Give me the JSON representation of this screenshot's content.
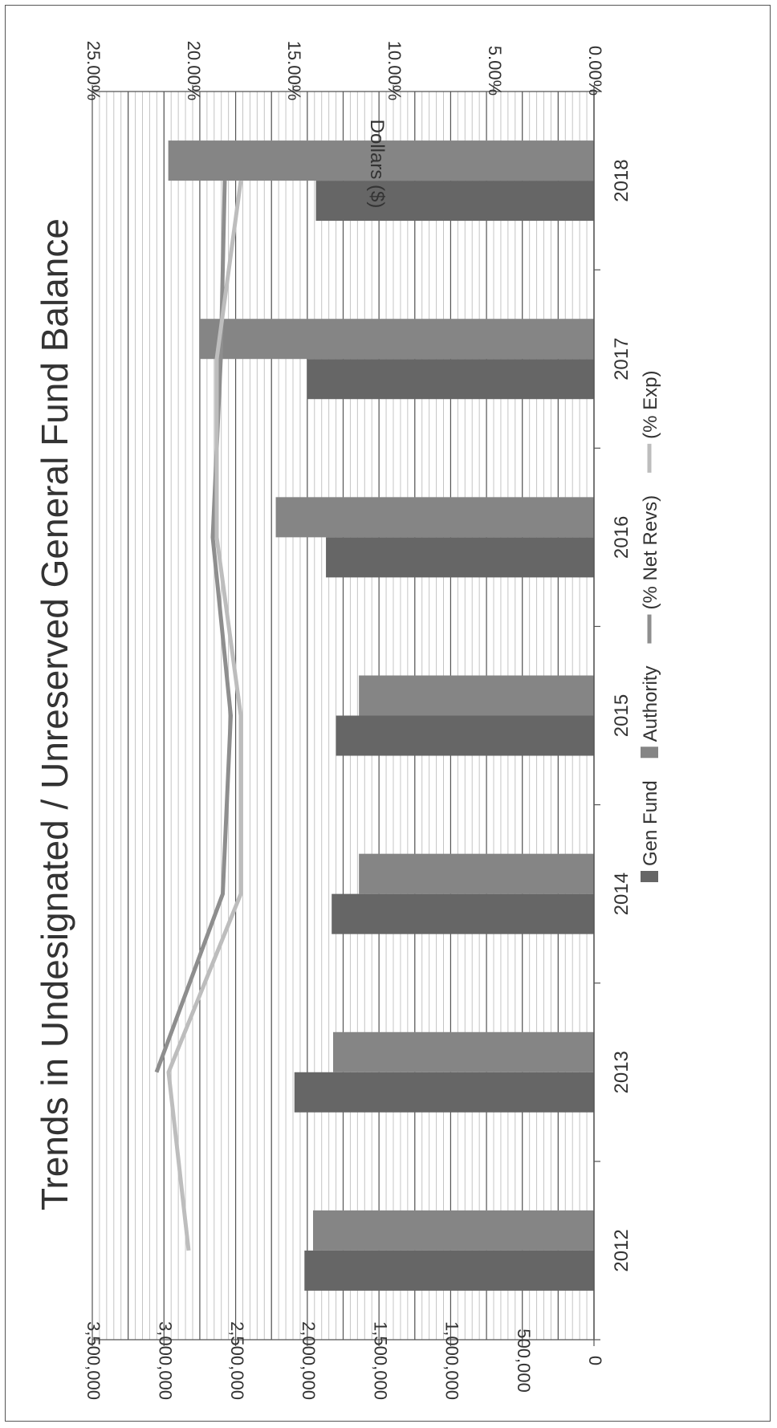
{
  "chart_data": {
    "type": "bar",
    "title": "Trends in Undesignated / Unreserved General Fund Balance",
    "xlabel": "",
    "ylabel": "Dollars ($)",
    "ylim": [
      0,
      3500000
    ],
    "y2lim": [
      0,
      25
    ],
    "categories": [
      "2012",
      "2013",
      "2014",
      "2015",
      "2016",
      "2017",
      "2018"
    ],
    "yticks": [
      "0",
      "500,000",
      "1,000,000",
      "1,500,000",
      "2,000,000",
      "2,500,000",
      "3,000,000",
      "3,500,000"
    ],
    "y2ticks": [
      "0.00%",
      "5.00%",
      "10.00%",
      "15.00%",
      "20.00%",
      "25.00%"
    ],
    "series": [
      {
        "name": "Gen Fund",
        "type": "bar",
        "axis": "left",
        "color": "#666666",
        "values": [
          2020000,
          2090000,
          1830000,
          1800000,
          1870000,
          2000000,
          1940000
        ]
      },
      {
        "name": "Authority",
        "type": "bar",
        "axis": "left",
        "color": "#858585",
        "values": [
          1960000,
          1820000,
          1640000,
          1640000,
          2220000,
          2750000,
          2970000
        ]
      },
      {
        "name": "(% Net Revs)",
        "type": "line",
        "axis": "right",
        "color": "#8e8e8e",
        "values": [
          null,
          21.8,
          18.5,
          18.1,
          19.0,
          18.6,
          18.4
        ]
      },
      {
        "name": "(% Exp)",
        "type": "line",
        "axis": "right",
        "color": "#bdbdbd",
        "values": [
          20.2,
          21.2,
          17.6,
          17.6,
          18.8,
          18.8,
          17.6
        ]
      }
    ],
    "grid": true,
    "legend_position": "bottom",
    "orientation": "vertical bars, page rotated 90° counter-clockwise"
  }
}
